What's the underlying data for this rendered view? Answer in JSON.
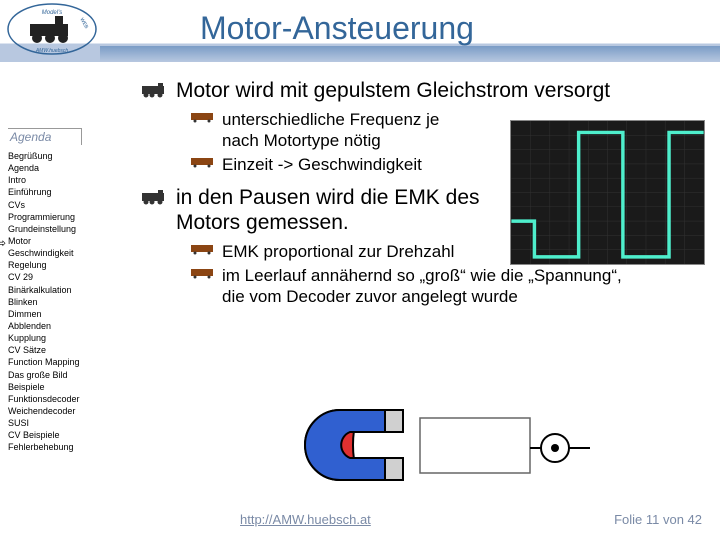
{
  "title": "Motor-Ansteuerung",
  "agenda_label": "Agenda",
  "sidebar": {
    "items": [
      "Begrüßung",
      "Agenda",
      "Intro",
      "Einführung",
      "CVs",
      "Programmierung",
      "Grundeinstellung",
      "Motor",
      "Geschwindigkeit",
      "Regelung",
      "CV 29",
      "Binärkalkulation",
      "Blinken",
      "Dimmen",
      "Abblenden",
      "Kupplung",
      "CV Sätze",
      "Function Mapping",
      "Das große Bild",
      "Beispiele",
      "Funktionsdecoder",
      "Weichendecoder",
      "SUSI",
      "CV Beispiele",
      "Fehlerbehebung"
    ],
    "current_index": 7
  },
  "content": {
    "b1": "Motor wird mit gepulstem Gleichstrom versorgt",
    "b1_sub1": "unterschiedliche Frequenz je nach Motortype nötig",
    "b1_sub2": "Einzeit -> Geschwindigkeit",
    "b2": "in den Pausen wird die EMK des Motors gemessen.",
    "b2_sub1": "EMK proportional zur Drehzahl",
    "b2_sub2": "im Leerlauf annähernd so „groß“ wie die „Spannung“, die vom Decoder zuvor angelegt wurde"
  },
  "oscilloscope": {
    "bg": "#1a1a1a",
    "trace_color": "#4eeecc",
    "trace": [
      [
        0,
        0.3
      ],
      [
        0.12,
        0.3
      ],
      [
        0.12,
        0.05
      ],
      [
        0.35,
        0.05
      ],
      [
        0.35,
        0.92
      ],
      [
        0.58,
        0.92
      ],
      [
        0.58,
        0.05
      ],
      [
        0.82,
        0.05
      ],
      [
        0.82,
        0.92
      ],
      [
        1.0,
        0.92
      ]
    ],
    "grid_color": "#333333"
  },
  "magnet": {
    "red": "#e03030",
    "blue": "#3060d0",
    "stroke": "#000000",
    "box_stroke": "#666666"
  },
  "footer": {
    "link": "http://AMW.huebsch.at",
    "page": "Folie 11 von  42"
  },
  "colors": {
    "title": "#336699",
    "header_grad_a": "#7a9cc6",
    "header_grad_b": "#b8c8e0",
    "footer_text": "#7a8aa6"
  }
}
